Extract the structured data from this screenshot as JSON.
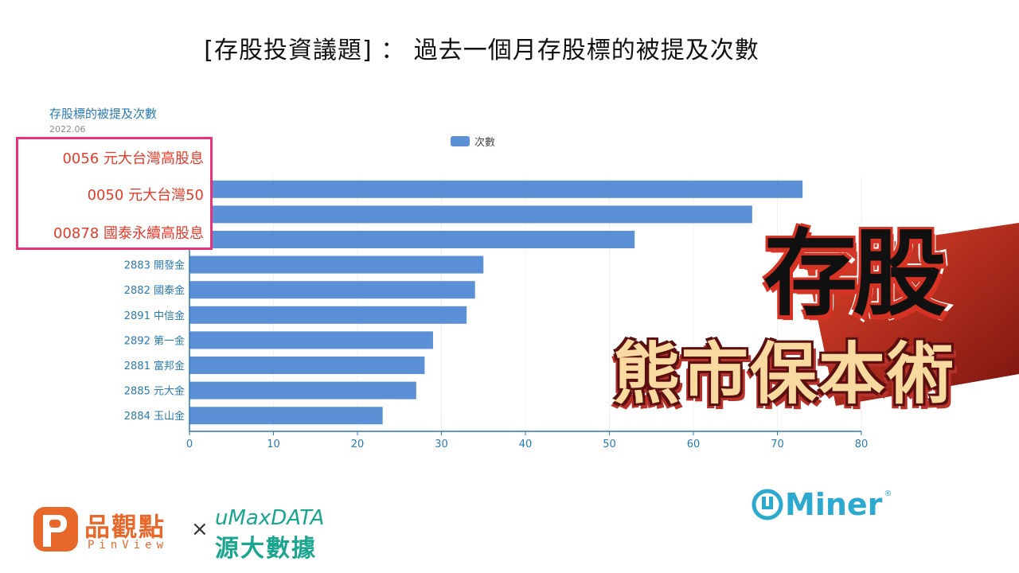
{
  "slide_title": "[存股投資議題] ： 過去一個月存股標的被提及次數",
  "chart_data": {
    "type": "bar",
    "orientation": "horizontal",
    "title": "存股標的被提及次數",
    "subtitle": "2022.06",
    "legend": "次數",
    "legend_position": "top-center",
    "categories": [
      "0056 元大台灣高股息",
      "0050 元大台灣50",
      "00878 國泰永續高股息",
      "2883 開發金",
      "2882 國泰金",
      "2891 中信金",
      "2892 第一金",
      "2881 富邦金",
      "2885 元大金",
      "2884 玉山金"
    ],
    "values": [
      73,
      67,
      53,
      35,
      34,
      33,
      29,
      28,
      27,
      23
    ],
    "xlim": [
      0,
      80
    ],
    "xticks": [
      0,
      10,
      20,
      30,
      40,
      50,
      60,
      70,
      80
    ],
    "grid": true,
    "bar_color": "#5b8fd6"
  },
  "highlighted_labels": [
    "0056 元大台灣高股息",
    "0050 元大台灣50",
    "00878 國泰永續高股息"
  ],
  "badge": {
    "main": "存股",
    "sub": "熊市保本術"
  },
  "logos": {
    "pinview_cn": "品觀點",
    "pinview_en": "PinView",
    "times": "×",
    "umax_top": "uMaxDATA",
    "umax_bottom": "源大數據",
    "uminer": "Miner",
    "uminer_reg": "®"
  },
  "colors": {
    "accent_pink": "#e8327a",
    "accent_red": "#e43b2b",
    "axis_blue": "#2a7ab3",
    "bar_blue": "#5b8fd6"
  }
}
